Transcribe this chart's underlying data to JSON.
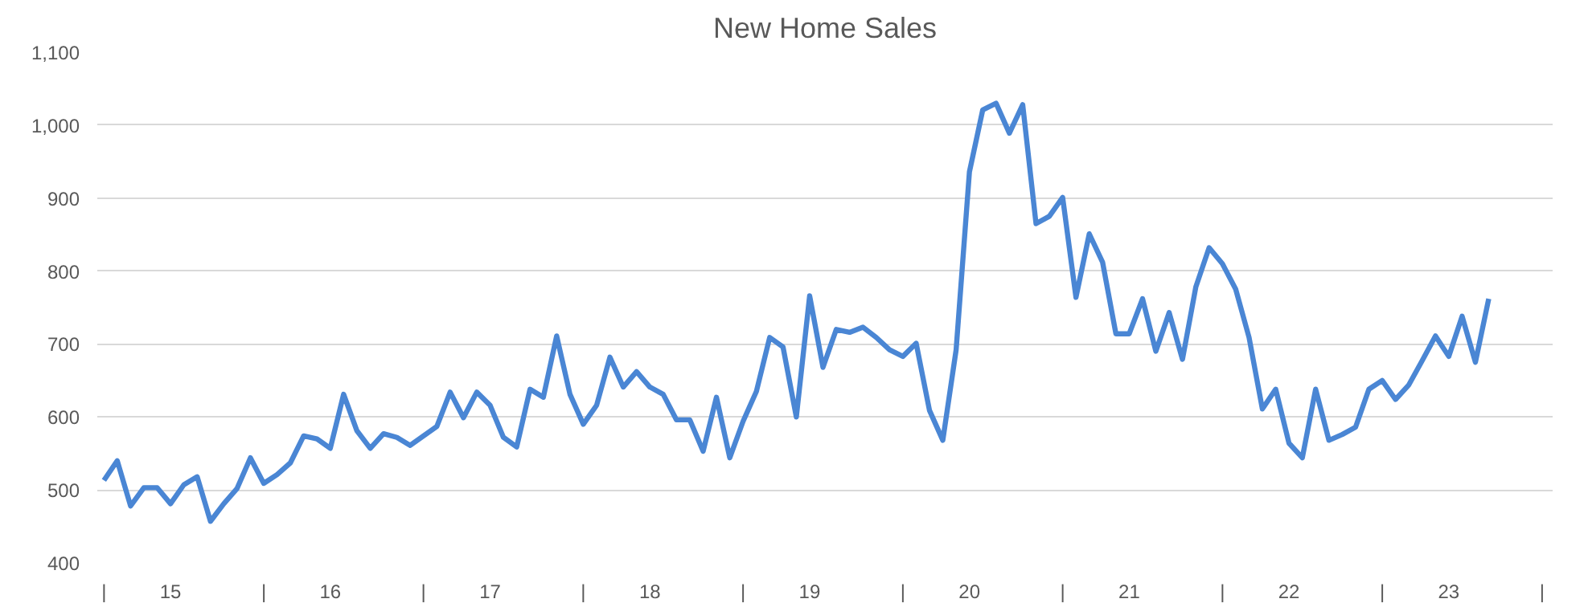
{
  "chart_data": {
    "type": "line",
    "title": "New Home Sales",
    "categories": [
      "|",
      null,
      null,
      null,
      null,
      "15",
      null,
      null,
      null,
      null,
      null,
      null,
      "|",
      null,
      null,
      null,
      null,
      "16",
      null,
      null,
      null,
      null,
      null,
      null,
      "|",
      null,
      null,
      null,
      null,
      "17",
      null,
      null,
      null,
      null,
      null,
      null,
      "|",
      null,
      null,
      null,
      null,
      "18",
      null,
      null,
      null,
      null,
      null,
      null,
      "|",
      null,
      null,
      null,
      null,
      "19",
      null,
      null,
      null,
      null,
      null,
      null,
      "|",
      null,
      null,
      null,
      null,
      "20",
      null,
      null,
      null,
      null,
      null,
      null,
      "|",
      null,
      null,
      null,
      null,
      "21",
      null,
      null,
      null,
      null,
      null,
      null,
      "|",
      null,
      null,
      null,
      null,
      "22",
      null,
      null,
      null,
      null,
      null,
      null,
      "|",
      null,
      null,
      null,
      null,
      "23",
      null,
      null,
      null,
      null,
      null,
      null,
      "|"
    ],
    "series": [
      {
        "color": "#4a86d4",
        "values": [
          513,
          540,
          478,
          503,
          503,
          481,
          507,
          518,
          457,
          481,
          502,
          544,
          509,
          521,
          537,
          574,
          570,
          557,
          631,
          581,
          557,
          577,
          572,
          561,
          574,
          587,
          634,
          599,
          634,
          616,
          572,
          559,
          638,
          627,
          711,
          631,
          590,
          616,
          682,
          641,
          662,
          641,
          631,
          596,
          596,
          553,
          627,
          544,
          594,
          635,
          709,
          696,
          600,
          766,
          668,
          720,
          716,
          723,
          709,
          692,
          683,
          701,
          609,
          568,
          692,
          936,
          1021,
          1030,
          989,
          1028,
          865,
          875,
          901,
          764,
          851,
          812,
          714,
          714,
          762,
          690,
          743,
          679,
          778,
          832,
          810,
          775,
          709,
          611,
          638,
          564,
          544,
          638,
          568,
          576,
          586,
          638,
          650,
          624,
          644,
          677,
          711,
          683,
          738,
          675,
          762,
          null,
          null,
          null,
          null
        ]
      }
    ],
    "ylim": [
      400,
      1100
    ],
    "yticks": [
      400,
      500,
      600,
      700,
      800,
      900,
      {
        "value": 1000,
        "label": "1,000"
      },
      {
        "value": 1100,
        "label": "1,100"
      }
    ],
    "grid": "y",
    "marker": "none",
    "line_style": "solid"
  }
}
